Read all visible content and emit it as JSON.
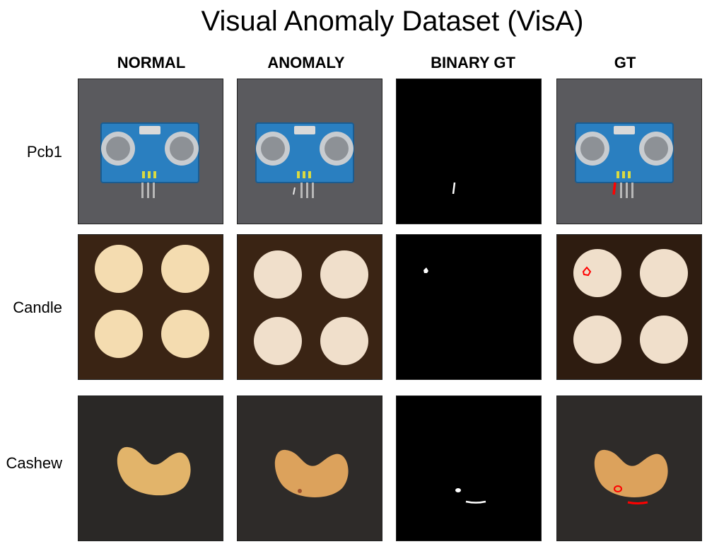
{
  "title": "Visual Anomaly Dataset (VisA)",
  "columns": [
    "NORMAL",
    "ANOMALY",
    "BINARY GT",
    "GT"
  ],
  "rows": [
    {
      "label": "Pcb1"
    },
    {
      "label": "Candle"
    },
    {
      "label": "Cashew"
    }
  ],
  "colors": {
    "pcb_background": "#5a5a5e",
    "pcb_board": "#2a7fc0",
    "candle_background": "#3a2414",
    "candle_wax": "#f4dcb0",
    "cashew_background": "#2a2826",
    "cashew_nut": "#e2b46a",
    "mask_background": "#000000",
    "mask_foreground": "#ffffff",
    "gt_outline": "#ff0000"
  }
}
